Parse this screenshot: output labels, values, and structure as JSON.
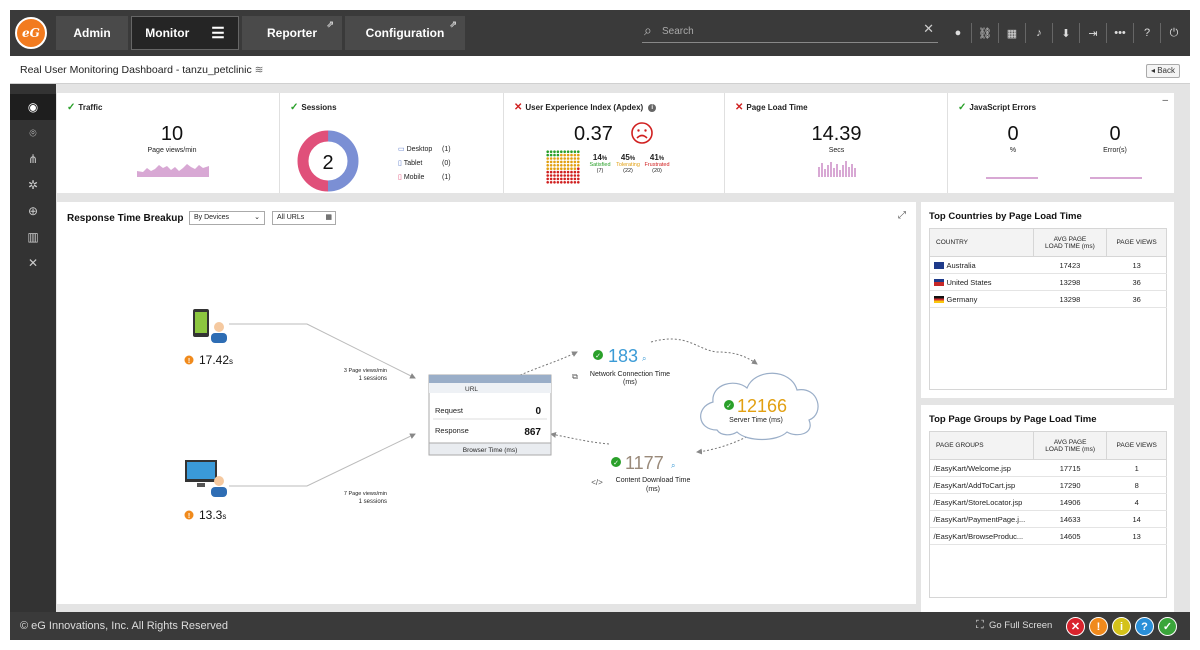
{
  "nav": {
    "logo": "eG",
    "tabs": [
      "Admin",
      "Monitor",
      "Reporter",
      "Configuration"
    ],
    "search_placeholder": "Search",
    "search_clear": "✕"
  },
  "page_title": "Real User Monitoring Dashboard - tanzu_petclinic",
  "back_label": "Back",
  "kpi": {
    "traffic": {
      "title": "Traffic",
      "value": "10",
      "caption": "Page views/min"
    },
    "sessions": {
      "title": "Sessions",
      "value": "2",
      "legend": [
        {
          "label": "Desktop",
          "count": "(1)"
        },
        {
          "label": "Tablet",
          "count": "(0)"
        },
        {
          "label": "Mobile",
          "count": "(1)"
        }
      ],
      "ring": [
        {
          "name": "Desktop",
          "value": 1,
          "color": "#7b8fd4"
        },
        {
          "name": "Mobile",
          "value": 1,
          "color": "#e0507a"
        }
      ]
    },
    "apdex": {
      "title": "User Experience Index (Apdex)",
      "value": "0.37",
      "satisfied": {
        "pct": "14",
        "label": "Satisfied",
        "count": "(7)",
        "color": "#2aa02a"
      },
      "tolerating": {
        "pct": "45",
        "label": "Tolerating",
        "count": "(22)",
        "color": "#e2a012"
      },
      "frustrated": {
        "pct": "41",
        "label": "Frustrated",
        "count": "(20)",
        "color": "#d02020"
      }
    },
    "page_load": {
      "title": "Page Load Time",
      "value": "14.39",
      "caption": "Secs"
    },
    "js_errors": {
      "title": "JavaScript Errors",
      "pct_value": "0",
      "pct_caption": "%",
      "err_value": "0",
      "err_caption": "Error(s)"
    }
  },
  "rtb": {
    "title": "Response Time Breakup",
    "filter_device": "By Devices",
    "filter_url": "All URLs",
    "mobile_time": "17.42",
    "desktop_time": "13.3",
    "time_unit": "s",
    "mobile_flow": {
      "line1": "3 Page views/min",
      "line2": "1 sessions"
    },
    "desktop_flow": {
      "line1": "7 Page views/min",
      "line2": "1 sessions"
    },
    "browser": {
      "url_label": "URL",
      "request_label": "Request",
      "request_value": "0",
      "response_label": "Response",
      "response_value": "867",
      "footer": "Browser Time (ms)"
    },
    "network": {
      "value": "183",
      "label1": "Network Connection Time",
      "label2": "(ms)"
    },
    "server": {
      "value": "12166",
      "label": "Server Time (ms)"
    },
    "content": {
      "value": "1177",
      "label1": "Content Download Time",
      "label2": "(ms)"
    }
  },
  "top_countries": {
    "title": "Top Countries by Page Load Time",
    "headers": [
      "COUNTRY",
      "AVG PAGE",
      "LOAD TIME (ms)",
      "PAGE VIEWS"
    ],
    "rows": [
      {
        "country": "Australia",
        "load": "17423",
        "views": "13"
      },
      {
        "country": "United States",
        "load": "13298",
        "views": "36"
      },
      {
        "country": "Germany",
        "load": "13298",
        "views": "36"
      }
    ]
  },
  "top_groups": {
    "title": "Top Page Groups by Page Load Time",
    "headers": [
      "PAGE GROUPS",
      "AVG PAGE",
      "LOAD TIME (ms)",
      "PAGE VIEWS"
    ],
    "rows": [
      {
        "group": "/EasyKart/Welcome.jsp",
        "load": "17715",
        "views": "1"
      },
      {
        "group": "/EasyKart/AddToCart.jsp",
        "load": "17290",
        "views": "8"
      },
      {
        "group": "/EasyKart/StoreLocator.jsp",
        "load": "14906",
        "views": "4"
      },
      {
        "group": "/EasyKart/PaymentPage.j...",
        "load": "14633",
        "views": "14"
      },
      {
        "group": "/EasyKart/BrowseProduc...",
        "load": "14605",
        "views": "13"
      }
    ]
  },
  "footer": {
    "copyright": "© eG Innovations, Inc. All Rights Reserved",
    "fullscreen": "Go Full Screen",
    "alerts": [
      {
        "icon": "critical-icon",
        "glyph": "✕",
        "color": "#d9232d"
      },
      {
        "icon": "major-icon",
        "glyph": "!",
        "color": "#f08a1c"
      },
      {
        "icon": "minor-icon",
        "glyph": "i",
        "color": "#d4c21a"
      },
      {
        "icon": "help-icon",
        "glyph": "?",
        "color": "#2a8fd8"
      },
      {
        "icon": "normal-icon",
        "glyph": "✓",
        "color": "#3aa53a"
      }
    ]
  }
}
